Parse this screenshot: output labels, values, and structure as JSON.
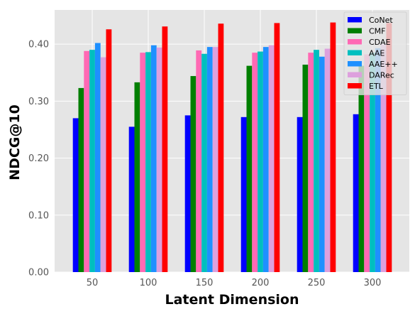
{
  "chart_data": {
    "type": "bar",
    "title": "",
    "xlabel": "Latent Dimension",
    "ylabel": "NDCG@10",
    "categories": [
      "50",
      "100",
      "150",
      "200",
      "250",
      "300"
    ],
    "ylim": [
      0,
      0.46
    ],
    "yticks": [
      0.0,
      0.1,
      0.2,
      0.3,
      0.4
    ],
    "ytick_labels": [
      "0.00",
      "0.10",
      "0.20",
      "0.30",
      "0.40"
    ],
    "grid": true,
    "legend_position": "top-right",
    "series": [
      {
        "name": "CoNet",
        "color": "#0000ff",
        "values": [
          0.27,
          0.255,
          0.275,
          0.272,
          0.272,
          0.277
        ]
      },
      {
        "name": "CMF",
        "color": "#007f00",
        "values": [
          0.323,
          0.333,
          0.344,
          0.362,
          0.364,
          0.362
        ]
      },
      {
        "name": "CDAE",
        "color": "#ff69b4",
        "values": [
          0.388,
          0.385,
          0.389,
          0.385,
          0.385,
          0.382
        ]
      },
      {
        "name": "AAE",
        "color": "#00bfbf",
        "values": [
          0.39,
          0.386,
          0.383,
          0.387,
          0.39,
          0.385
        ]
      },
      {
        "name": "AAE++",
        "color": "#1e90ff",
        "values": [
          0.402,
          0.398,
          0.395,
          0.395,
          0.378,
          0.393
        ]
      },
      {
        "name": "DARec",
        "color": "#dda0dd",
        "values": [
          0.377,
          0.394,
          0.395,
          0.398,
          0.392,
          0.4
        ]
      },
      {
        "name": "ETL",
        "color": "#ff0000",
        "values": [
          0.426,
          0.431,
          0.436,
          0.437,
          0.438,
          0.437
        ]
      }
    ]
  }
}
